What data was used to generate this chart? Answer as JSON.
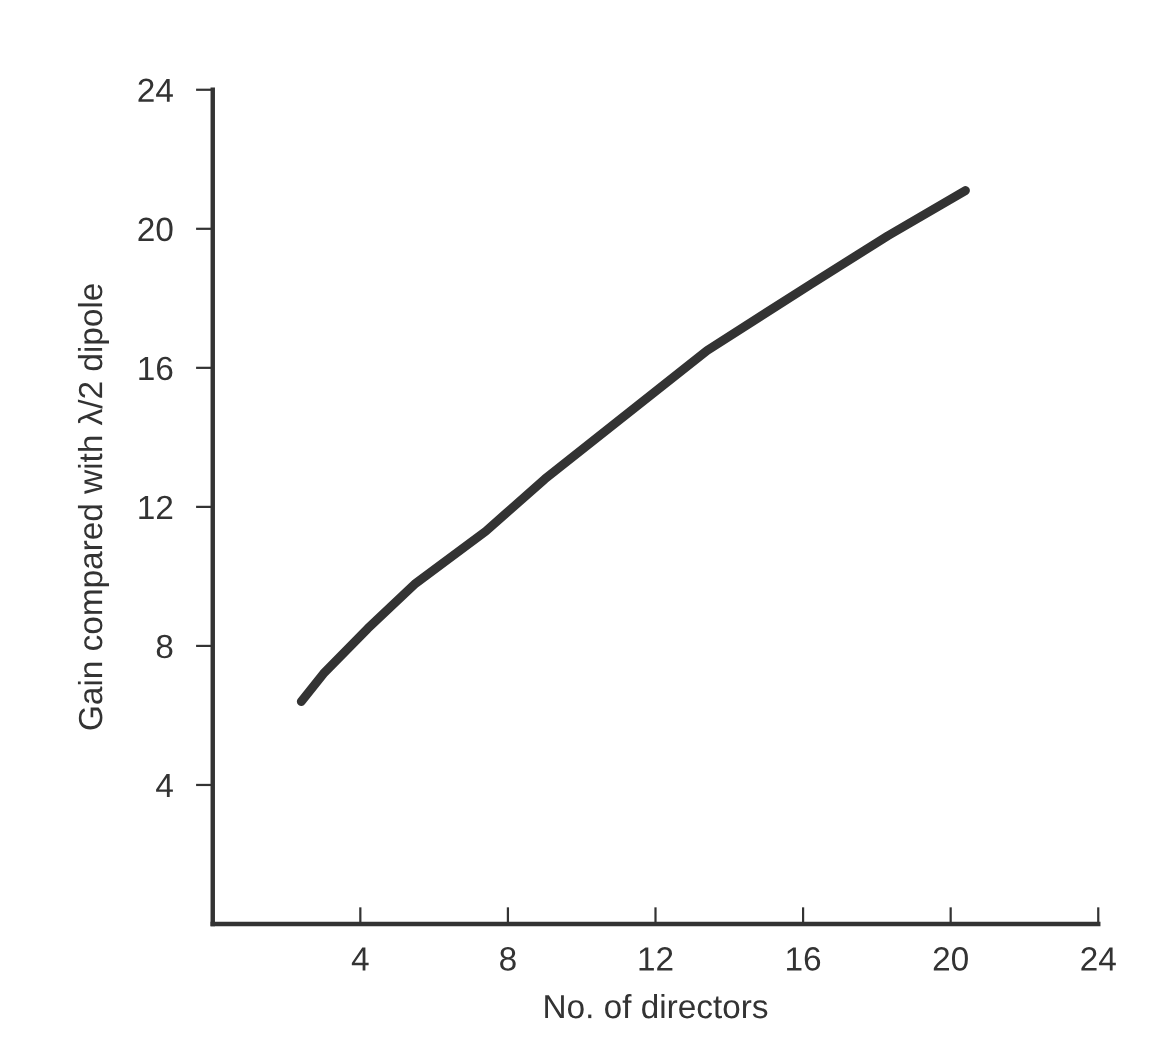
{
  "chart_data": {
    "type": "line",
    "xlabel": "No. of directors",
    "ylabel": "Gain compared with λ/2 dipole",
    "series": [
      {
        "color": "#333333",
        "x": [
          2.4,
          3,
          4.2,
          5.5,
          7.4,
          9,
          10.9,
          13.4,
          16.2,
          18.3,
          20.4
        ],
        "values": [
          6.4,
          7.2,
          8.5,
          9.8,
          11.3,
          12.8,
          14.4,
          16.5,
          18.4,
          19.8,
          21.1
        ]
      }
    ],
    "xlim": [
      0,
      24
    ],
    "ylim": [
      0,
      24
    ],
    "xticks": [
      4,
      8,
      12,
      16,
      20,
      24
    ],
    "yticks": [
      4,
      8,
      12,
      16,
      20,
      24
    ],
    "grid": false,
    "legend": false,
    "marker": "none",
    "line_style": "solid"
  }
}
